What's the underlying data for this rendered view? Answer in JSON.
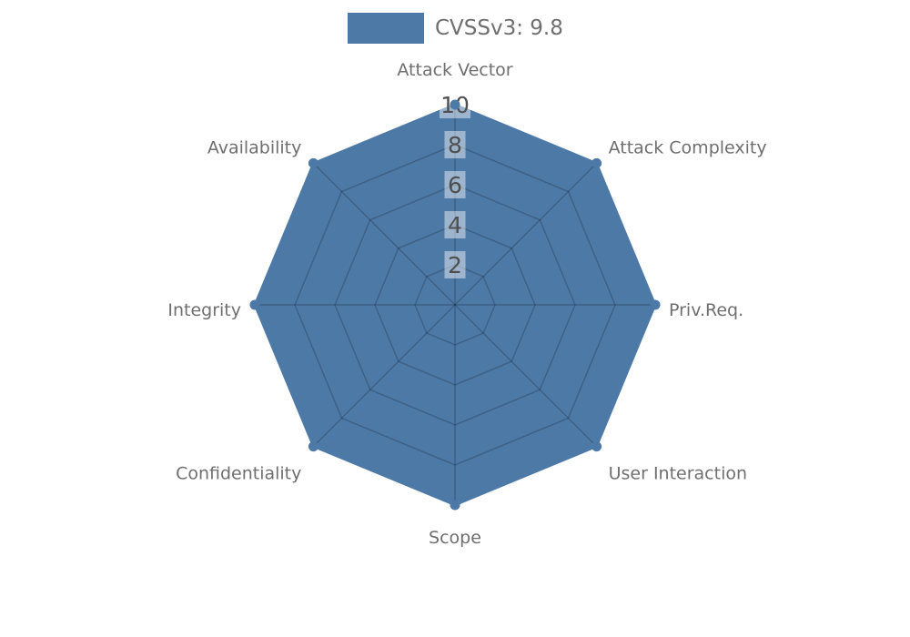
{
  "page": {
    "background": "#ffffff"
  },
  "legend": {
    "label": "CVSSv3: 9.8",
    "swatch_color": "#4d79a7"
  },
  "chart_data": {
    "type": "radar",
    "title": "",
    "legend_position": "top",
    "grid": true,
    "indicators": [
      {
        "name": "Attack Vector",
        "max": 10
      },
      {
        "name": "Attack Complexity",
        "max": 10
      },
      {
        "name": "Priv.Req.",
        "max": 10
      },
      {
        "name": "User Interaction",
        "max": 10
      },
      {
        "name": "Scope",
        "max": 10
      },
      {
        "name": "Confidentiality",
        "max": 10
      },
      {
        "name": "Integrity",
        "max": 10
      },
      {
        "name": "Availability",
        "max": 10
      }
    ],
    "series": [
      {
        "name": "CVSSv3: 9.8",
        "values": [
          10,
          10,
          10,
          10,
          10,
          10,
          10,
          10
        ],
        "color": "#4d79a7"
      }
    ],
    "axis_ticks": [
      2,
      4,
      6,
      8,
      10
    ],
    "axis_range": [
      0,
      10
    ],
    "colors": {
      "series_fill": "#4d79a7",
      "series_stroke": "#4d79a7",
      "gridline": "rgba(0,0,0,0.20)",
      "axis_label": "#6f6f6f",
      "tick_text": "#4f4f4f",
      "tick_bg": "rgba(255,255,255,0.45)"
    }
  }
}
